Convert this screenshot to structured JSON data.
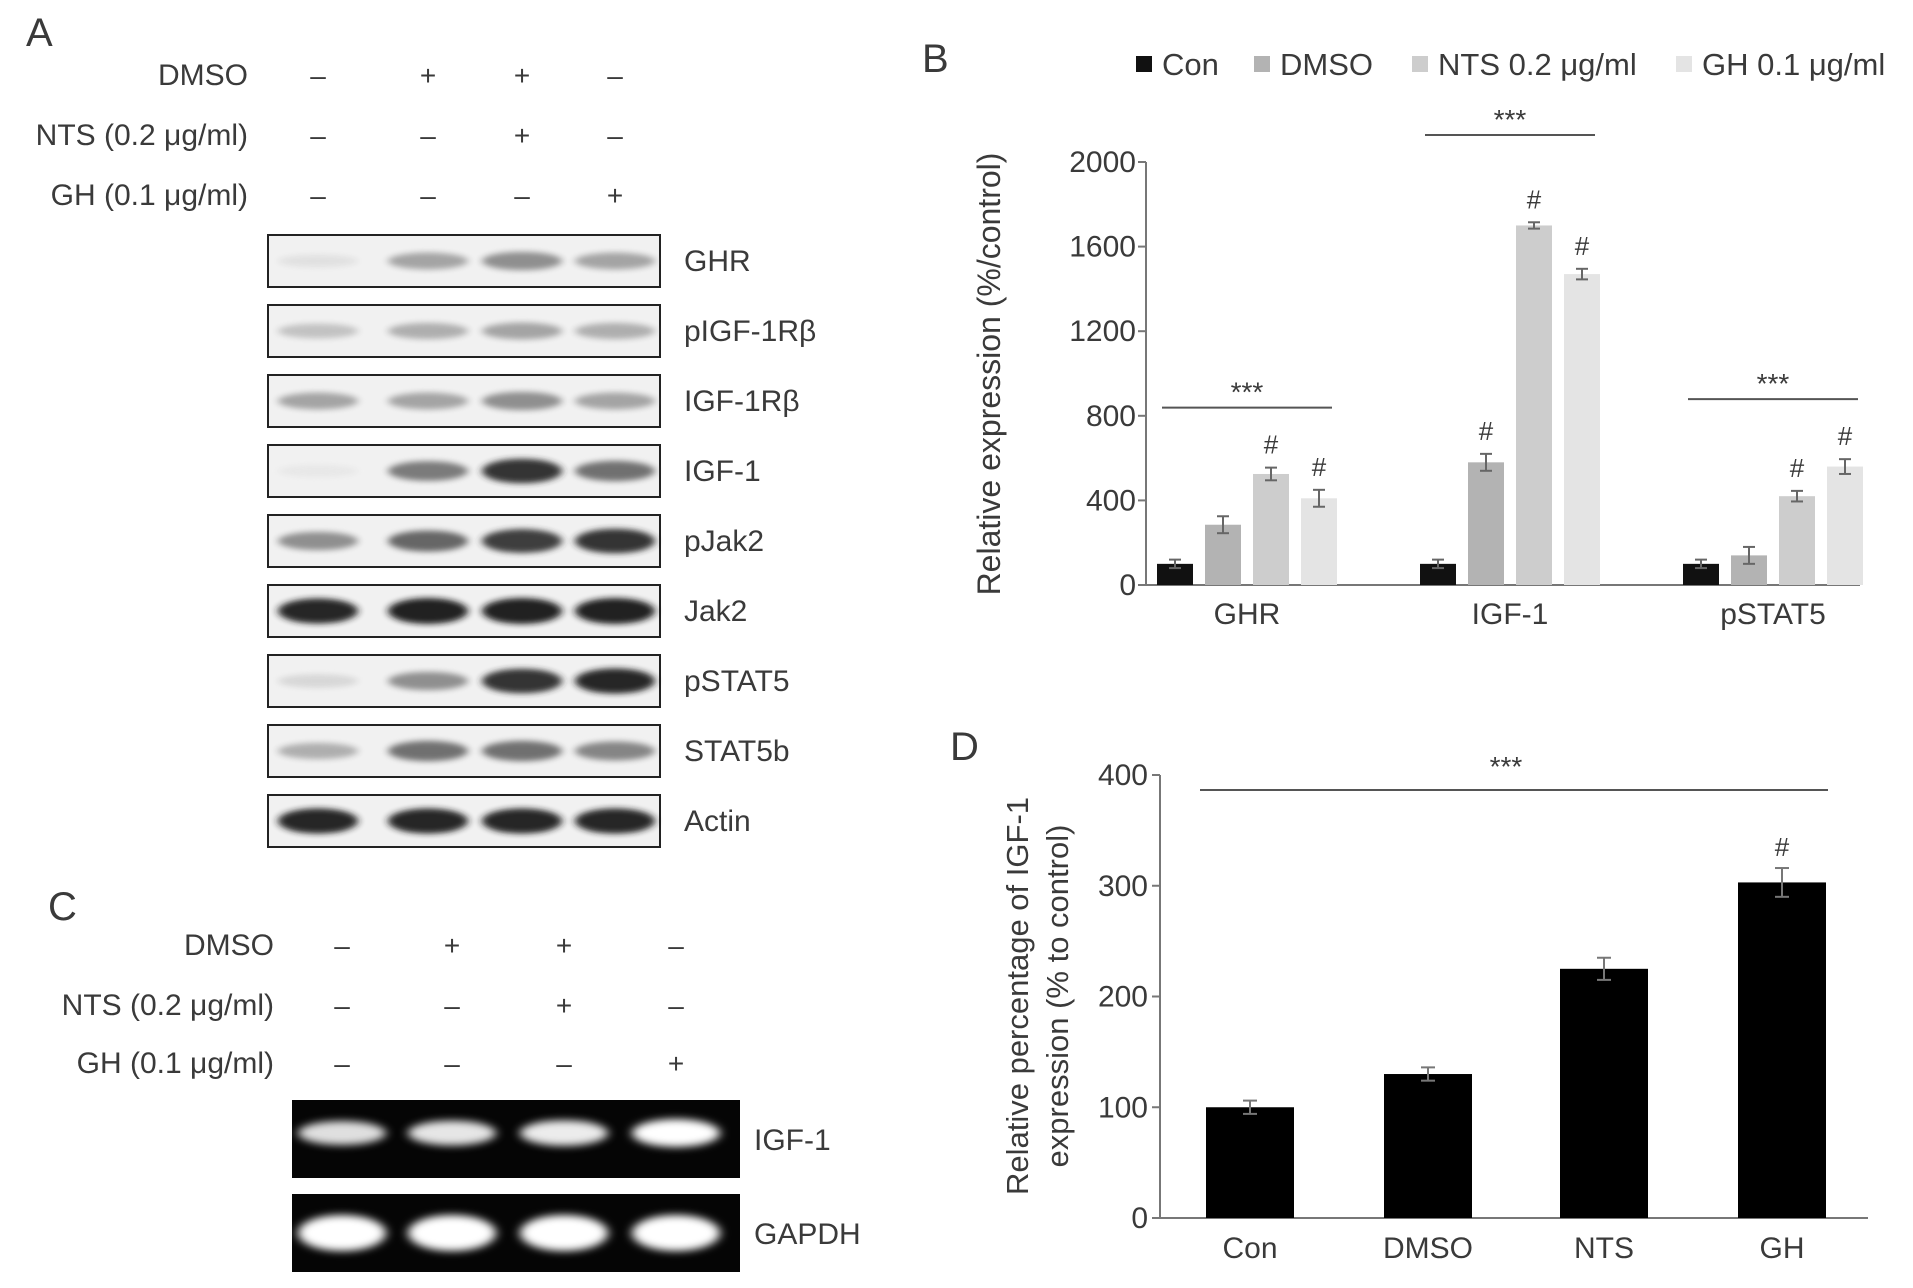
{
  "panels": {
    "A": {
      "letter": "A",
      "treatments": [
        {
          "label": "DMSO",
          "signs": [
            "–",
            "+",
            "+",
            "–"
          ]
        },
        {
          "label": "NTS (0.2 μg/ml)",
          "signs": [
            "–",
            "–",
            "+",
            "–"
          ]
        },
        {
          "label": "GH (0.1 μg/ml)",
          "signs": [
            "–",
            "–",
            "–",
            "+"
          ]
        }
      ],
      "blots": [
        {
          "label": "GHR",
          "intensity": [
            0.05,
            0.35,
            0.45,
            0.35
          ],
          "dark": false
        },
        {
          "label": "pIGF-1Rβ",
          "intensity": [
            0.2,
            0.3,
            0.35,
            0.3
          ],
          "dark": false
        },
        {
          "label": "IGF-1Rβ",
          "intensity": [
            0.35,
            0.35,
            0.45,
            0.35
          ],
          "dark": false
        },
        {
          "label": "IGF-1",
          "intensity": [
            0.02,
            0.55,
            0.9,
            0.6
          ],
          "dark": false
        },
        {
          "label": "pJak2",
          "intensity": [
            0.45,
            0.65,
            0.85,
            0.9
          ],
          "dark": false
        },
        {
          "label": "Jak2",
          "intensity": [
            0.95,
            1.0,
            1.0,
            1.0
          ],
          "dark": false
        },
        {
          "label": "pSTAT5",
          "intensity": [
            0.1,
            0.45,
            0.9,
            0.95
          ],
          "dark": false
        },
        {
          "label": "STAT5b",
          "intensity": [
            0.3,
            0.6,
            0.6,
            0.5
          ],
          "dark": false
        },
        {
          "label": "Actin",
          "intensity": [
            0.95,
            0.95,
            0.95,
            0.95
          ],
          "dark": false
        }
      ]
    },
    "B": {
      "letter": "B",
      "chart_data": {
        "type": "bar",
        "categories": [
          "GHR",
          "IGF-1",
          "pSTAT5"
        ],
        "series": [
          {
            "name": "Con",
            "color": "#111111",
            "values": [
              100,
              100,
              100
            ],
            "errors": [
              20,
              20,
              20
            ]
          },
          {
            "name": "DMSO",
            "color": "#b3b3b3",
            "values": [
              285,
              580,
              140
            ],
            "errors": [
              40,
              40,
              40
            ]
          },
          {
            "name": "NTS 0.2 μg/ml",
            "color": "#cdcdcd",
            "values": [
              525,
              1700,
              420
            ],
            "errors": [
              30,
              15,
              25
            ]
          },
          {
            "name": "GH 0.1 μg/ml",
            "color": "#e4e4e4",
            "values": [
              410,
              1470,
              560
            ],
            "errors": [
              40,
              25,
              35
            ]
          }
        ],
        "hash_marks": [
          [
            false,
            false,
            true,
            true
          ],
          [
            false,
            true,
            true,
            true
          ],
          [
            false,
            false,
            true,
            true
          ]
        ],
        "hash_symbol": "#",
        "significance": "***",
        "ylabel": "Relative expression (%/control)",
        "ylim": [
          0,
          2000
        ],
        "yticks": [
          "0",
          "400",
          "800",
          "1200",
          "1600",
          "2000"
        ],
        "legend_position": "top"
      }
    },
    "C": {
      "letter": "C",
      "treatments": [
        {
          "label": "DMSO",
          "signs": [
            "–",
            "+",
            "+",
            "–"
          ]
        },
        {
          "label": "NTS (0.2 μg/ml)",
          "signs": [
            "–",
            "–",
            "+",
            "–"
          ]
        },
        {
          "label": "GH (0.1 μg/ml)",
          "signs": [
            "–",
            "–",
            "–",
            "+"
          ]
        }
      ],
      "gels": [
        {
          "label": "IGF-1",
          "intensity": [
            0.75,
            0.8,
            0.85,
            1.0
          ]
        },
        {
          "label": "GAPDH",
          "intensity": [
            1.0,
            1.0,
            1.0,
            1.0
          ]
        }
      ]
    },
    "D": {
      "letter": "D",
      "chart_data": {
        "type": "bar",
        "categories": [
          "Con",
          "DMSO",
          "NTS",
          "GH"
        ],
        "values": [
          100,
          130,
          225,
          303
        ],
        "errors": [
          6,
          6,
          10,
          13
        ],
        "color": "#000000",
        "hash_marks": [
          false,
          false,
          false,
          true
        ],
        "hash_symbol": "#",
        "significance": "***",
        "ylabel_lines": [
          "Relative percentage of IGF-1",
          "expression (% to control)"
        ],
        "ylim": [
          0,
          400
        ],
        "yticks": [
          "0",
          "100",
          "200",
          "300",
          "400"
        ]
      }
    }
  }
}
